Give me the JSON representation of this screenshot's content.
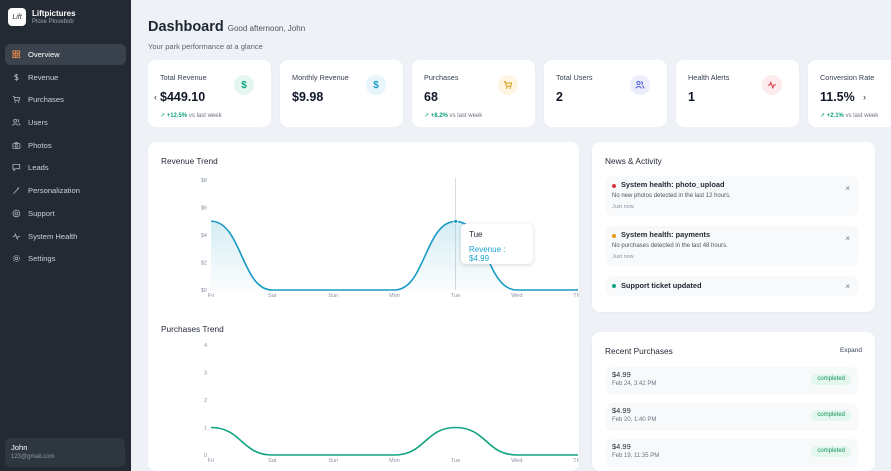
{
  "brand": {
    "name": "Liftpictures",
    "subtitle": "Plose Plosebob",
    "logo_text": "Lift"
  },
  "sidebar": {
    "items": [
      {
        "label": "Overview",
        "icon": "grid-icon",
        "active": true
      },
      {
        "label": "Revenue",
        "icon": "dollar-icon"
      },
      {
        "label": "Purchases",
        "icon": "cart-icon"
      },
      {
        "label": "Users",
        "icon": "users-icon"
      },
      {
        "label": "Photos",
        "icon": "camera-icon"
      },
      {
        "label": "Leads",
        "icon": "chat-icon"
      },
      {
        "label": "Personalization",
        "icon": "wand-icon"
      },
      {
        "label": "Support",
        "icon": "support-icon"
      },
      {
        "label": "System Health",
        "icon": "pulse-icon"
      },
      {
        "label": "Settings",
        "icon": "gear-icon"
      }
    ]
  },
  "user": {
    "name": "John",
    "email": "123@gmail.com"
  },
  "header": {
    "title": "Dashboard",
    "greeting": "Good afternoon, John",
    "subtitle": "Your park performance at a glance"
  },
  "kpis": [
    {
      "label": "Total Revenue",
      "value": "$449.10",
      "trend": "+12.5%",
      "trend_suffix": "vs last week",
      "icon": "$",
      "icon_name": "dollar-icon",
      "icon_color": "#10a37f",
      "icon_bg": "#e6f7f0"
    },
    {
      "label": "Monthly Revenue",
      "value": "$9.98",
      "trend": "",
      "trend_suffix": "",
      "icon": "$",
      "icon_name": "dollar-icon",
      "icon_color": "#1a9bc4",
      "icon_bg": "#e8f5fb"
    },
    {
      "label": "Purchases",
      "value": "68",
      "trend": "+8.2%",
      "trend_suffix": "vs last week",
      "icon": "cart",
      "icon_name": "cart-icon",
      "icon_color": "#d59a10",
      "icon_bg": "#fdf5e1"
    },
    {
      "label": "Total Users",
      "value": "2",
      "trend": "",
      "trend_suffix": "",
      "icon": "users",
      "icon_name": "users-icon",
      "icon_color": "#4f5bd5",
      "icon_bg": "#eceefb"
    },
    {
      "label": "Health Alerts",
      "value": "1",
      "trend": "",
      "trend_suffix": "",
      "icon": "pulse",
      "icon_name": "pulse-icon",
      "icon_color": "#d9343f",
      "icon_bg": "#fdecee"
    },
    {
      "label": "Conversion Rate",
      "value": "11.5%",
      "trend": "+2.1%",
      "trend_suffix": "vs last week",
      "icon": "",
      "icon_name": "",
      "icon_color": "",
      "icon_bg": ""
    }
  ],
  "carousel": {
    "prev": "‹",
    "next": "›"
  },
  "revenue_panel": {
    "title": "Revenue Trend"
  },
  "purchases_panel": {
    "title": "Purchases Trend"
  },
  "tooltip": {
    "title": "Tue",
    "value": "Revenue : $4.99"
  },
  "chart_data": [
    {
      "type": "area",
      "title": "Revenue Trend",
      "categories": [
        "Fri",
        "Sat",
        "Sun",
        "Mon",
        "Tue",
        "Wed",
        "Thu"
      ],
      "series": [
        {
          "values": [
            5,
            0,
            0,
            0,
            4.99,
            0,
            0
          ]
        }
      ],
      "y_ticks": [
        "$0",
        "$2",
        "$4",
        "$6",
        "$8"
      ],
      "ylim": [
        0,
        8
      ],
      "color": "#1a9bc4"
    },
    {
      "type": "line",
      "title": "Purchases Trend",
      "categories": [
        "Fri",
        "Sat",
        "Sun",
        "Mon",
        "Tue",
        "Wed",
        "Thu"
      ],
      "series": [
        {
          "values": [
            1,
            0,
            0,
            0,
            1,
            0,
            0
          ]
        }
      ],
      "y_ticks": [
        "0",
        "1",
        "2",
        "3",
        "4"
      ],
      "ylim": [
        0,
        4
      ],
      "color": "#10a37f"
    }
  ],
  "news": {
    "title": "News & Activity",
    "items": [
      {
        "title": "System health: photo_upload",
        "desc": "No new photos detected in the last 12 hours.",
        "time": "Just now",
        "color": "#d9343f"
      },
      {
        "title": "System health: payments",
        "desc": "No purchases detected in the last 48 hours.",
        "time": "Just now",
        "color": "#e59a12"
      },
      {
        "title": "Support ticket updated",
        "desc": "",
        "time": "",
        "color": "#10a37f"
      }
    ],
    "close": "×"
  },
  "recent": {
    "title": "Recent Purchases",
    "expand": "Expand",
    "items": [
      {
        "amount": "$4.99",
        "date": "Feb 24, 3:42 PM",
        "status": "completed"
      },
      {
        "amount": "$4.99",
        "date": "Feb 20, 1:40 PM",
        "status": "completed"
      },
      {
        "amount": "$4.99",
        "date": "Feb 19, 11:35 PM",
        "status": "completed"
      }
    ]
  }
}
